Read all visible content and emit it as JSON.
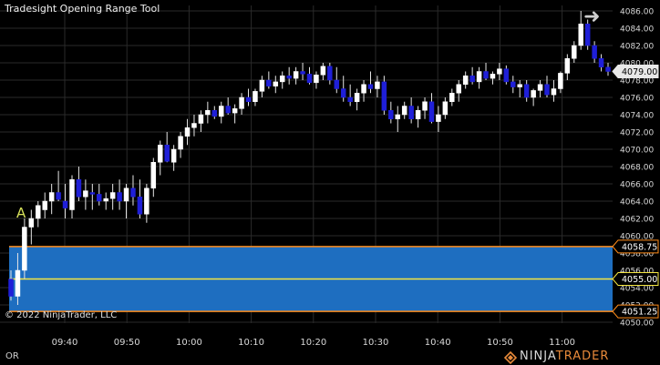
{
  "window": {
    "title": "Tradesight Opening Range Tool",
    "copyright": "© 2022 NinjaTrader, LLC",
    "bottom_label": "OR",
    "logo_text": "NINJATRADER",
    "logo_accent": "TRADER"
  },
  "colors": {
    "background": "#000000",
    "grid": "#2a2a2a",
    "up_candle": "#ffffff",
    "down_candle": "#1f1fd8",
    "range_fill": "#1e6ec0",
    "range_border": "#ff8c1a",
    "mid_line": "#f5e642",
    "marker_text": "#d6e05a"
  },
  "chart_data": {
    "type": "candlestick",
    "title": "Tradesight Opening Range Tool",
    "ylim": [
      4050,
      4086
    ],
    "y_ticks": [
      4050,
      4052,
      4054,
      4056,
      4058,
      4060,
      4062,
      4064,
      4066,
      4068,
      4070,
      4072,
      4074,
      4076,
      4078,
      4080,
      4082,
      4084,
      4086
    ],
    "y_tick_labels": [
      "4050.00",
      "4052.00",
      "4054.00",
      "4056.00",
      "4058.00",
      "4060.00",
      "4062.00",
      "4064.00",
      "4066.00",
      "4068.00",
      "4070.00",
      "4072.00",
      "4074.00",
      "4076.00",
      "4078.00",
      "4080.00",
      "4082.00",
      "4084.00",
      "4086.00"
    ],
    "x_labels": [
      "09:40",
      "09:50",
      "10:00",
      "10:10",
      "10:20",
      "10:30",
      "10:40",
      "10:50",
      "11:00"
    ],
    "opening_range": {
      "high": 4058.75,
      "mid": 4055.0,
      "low": 4051.25,
      "labels": [
        "4058.75",
        "4055.00",
        "4051.25"
      ]
    },
    "last_price": 4079.0,
    "last_price_label": "4079.00",
    "marker": "A",
    "candles": [
      [
        4055,
        4056,
        4052.5,
        4053
      ],
      [
        4053,
        4058,
        4052,
        4056
      ],
      [
        4056,
        4062,
        4055,
        4061
      ],
      [
        4061,
        4063,
        4059,
        4062
      ],
      [
        4062,
        4064,
        4061,
        4063.5
      ],
      [
        4063,
        4065,
        4062,
        4064
      ],
      [
        4064,
        4066,
        4062.5,
        4065
      ],
      [
        4065,
        4067.5,
        4064,
        4064.2
      ],
      [
        4064,
        4066,
        4062,
        4063.2
      ],
      [
        4063,
        4067,
        4062,
        4066.5
      ],
      [
        4066.5,
        4068,
        4064,
        4064.5
      ],
      [
        4064.5,
        4066.5,
        4063,
        4065.2
      ],
      [
        4065,
        4066,
        4063,
        4064.8
      ],
      [
        4064.8,
        4066,
        4063.5,
        4064
      ],
      [
        4064,
        4065,
        4063,
        4064.3
      ],
      [
        4064.3,
        4066,
        4063,
        4065
      ],
      [
        4065,
        4066.5,
        4063,
        4064
      ],
      [
        4064,
        4066,
        4062,
        4065.5
      ],
      [
        4065.5,
        4067,
        4063.5,
        4064.5
      ],
      [
        4064.5,
        4066.5,
        4062,
        4062.5
      ],
      [
        4062.5,
        4066,
        4061.5,
        4065.5
      ],
      [
        4065.5,
        4069,
        4064.5,
        4068.5
      ],
      [
        4068.5,
        4071,
        4067,
        4070.5
      ],
      [
        4070.5,
        4072,
        4068.5,
        4068.6
      ],
      [
        4068.5,
        4070.5,
        4067.5,
        4070
      ],
      [
        4070,
        4072,
        4069,
        4071.5
      ],
      [
        4071.5,
        4073.5,
        4070.5,
        4072.5
      ],
      [
        4072.5,
        4074,
        4071.5,
        4073
      ],
      [
        4073,
        4074.5,
        4072,
        4074
      ],
      [
        4074,
        4075.5,
        4073,
        4074.5
      ],
      [
        4074.5,
        4075,
        4073.5,
        4073.8
      ],
      [
        4073.8,
        4075.5,
        4073,
        4075
      ],
      [
        4075,
        4076,
        4074,
        4074.2
      ],
      [
        4074.2,
        4075.2,
        4073,
        4074.7
      ],
      [
        4074.7,
        4076.5,
        4074,
        4076
      ],
      [
        4076,
        4077,
        4075,
        4075.5
      ],
      [
        4075.5,
        4077,
        4075,
        4076.7
      ],
      [
        4076.7,
        4078.5,
        4076,
        4078
      ],
      [
        4078,
        4079,
        4077,
        4077.3
      ],
      [
        4077.3,
        4078.5,
        4076.5,
        4077.8
      ],
      [
        4077.8,
        4079,
        4077,
        4078.5
      ],
      [
        4078.5,
        4079.5,
        4077.5,
        4078.2
      ],
      [
        4078.2,
        4079.5,
        4077.5,
        4079
      ],
      [
        4079,
        4080,
        4078,
        4078.7
      ],
      [
        4078.7,
        4079.5,
        4077.5,
        4077.7
      ],
      [
        4077.7,
        4079,
        4077,
        4078.6
      ],
      [
        4078.6,
        4080,
        4078,
        4079.6
      ],
      [
        4079.6,
        4080,
        4077.5,
        4078
      ],
      [
        4078,
        4079.5,
        4076.5,
        4077
      ],
      [
        4077,
        4078.5,
        4075.5,
        4076
      ],
      [
        4076,
        4077.5,
        4075,
        4075.5
      ],
      [
        4075.5,
        4077,
        4074.5,
        4076.5
      ],
      [
        4076.5,
        4078,
        4075.5,
        4077.5
      ],
      [
        4077.5,
        4079,
        4076.5,
        4077
      ],
      [
        4077,
        4078.5,
        4076,
        4077.8
      ],
      [
        4077.8,
        4078.5,
        4074,
        4074.5
      ],
      [
        4074.5,
        4075.5,
        4073,
        4073.5
      ],
      [
        4073.5,
        4075,
        4072,
        4074
      ],
      [
        4074,
        4075.5,
        4073.5,
        4075
      ],
      [
        4075,
        4076,
        4073,
        4073.5
      ],
      [
        4073.5,
        4075,
        4072.5,
        4074.5
      ],
      [
        4074.5,
        4076,
        4073.5,
        4075.5
      ],
      [
        4075.5,
        4076.5,
        4073,
        4073.2
      ],
      [
        4073.2,
        4075,
        4072,
        4074
      ],
      [
        4074,
        4076,
        4073.5,
        4075.5
      ],
      [
        4075.5,
        4077,
        4075,
        4076.5
      ],
      [
        4076.5,
        4078,
        4075.5,
        4077.5
      ],
      [
        4077.5,
        4079,
        4077,
        4078.5
      ],
      [
        4078.5,
        4079.5,
        4077.5,
        4077.8
      ],
      [
        4077.8,
        4079.5,
        4077,
        4079
      ],
      [
        4079,
        4080,
        4078,
        4078.2
      ],
      [
        4078.2,
        4079,
        4077.5,
        4078.7
      ],
      [
        4078.7,
        4080,
        4078,
        4079.3
      ],
      [
        4079.3,
        4079.7,
        4077.5,
        4077.8
      ],
      [
        4077.8,
        4078.5,
        4076.5,
        4077.2
      ],
      [
        4077.2,
        4078,
        4076,
        4077.5
      ],
      [
        4077.5,
        4078,
        4075.5,
        4076
      ],
      [
        4076,
        4077,
        4075,
        4076.8
      ],
      [
        4076.8,
        4078,
        4076,
        4077.5
      ],
      [
        4077.5,
        4078.5,
        4076,
        4076.3
      ],
      [
        4076.3,
        4078,
        4075.5,
        4077
      ],
      [
        4077,
        4079,
        4076.5,
        4078.8
      ],
      [
        4078.8,
        4081,
        4078,
        4080.5
      ],
      [
        4080.5,
        4082.5,
        4080,
        4082
      ],
      [
        4082,
        4086,
        4081.5,
        4084.5
      ],
      [
        4084.5,
        4085,
        4081.5,
        4082
      ],
      [
        4082,
        4082.5,
        4080,
        4080.5
      ],
      [
        4080.5,
        4081,
        4079,
        4079.5
      ],
      [
        4079.5,
        4080,
        4078.5,
        4079
      ]
    ]
  }
}
